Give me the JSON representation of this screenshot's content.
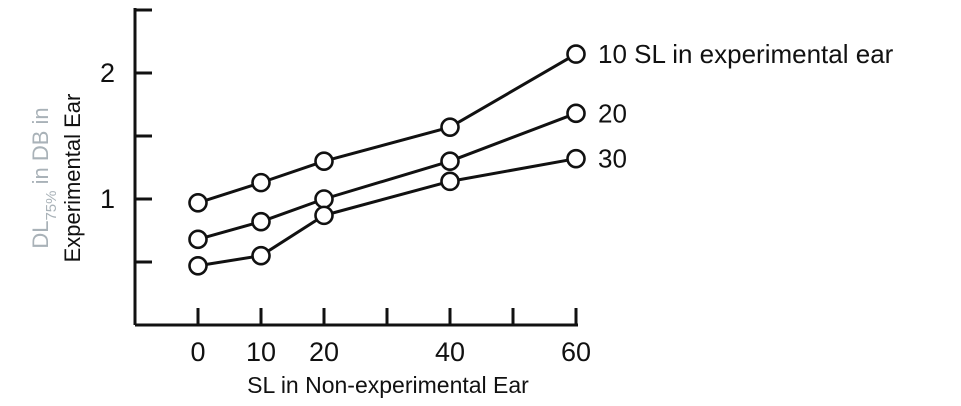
{
  "chart_data": {
    "type": "line",
    "x": [
      0,
      10,
      20,
      40,
      60
    ],
    "x_tick_labels": [
      "0",
      "10",
      "20",
      "40",
      "60"
    ],
    "y_tick_labels": [
      "1",
      "2"
    ],
    "y_ticks": [
      0.5,
      1,
      1.5,
      2,
      2.5
    ],
    "ylim": [
      0,
      2.5
    ],
    "xlabel": "SL in Non-experimental Ear",
    "ylabel": {
      "line1_main": "DL",
      "line1_sub": "75%",
      "line1_rest": " in DB in",
      "line2": "Experimental Ear"
    },
    "ylabel_colors": {
      "line1": "#a9b2b8",
      "line2": "#111111"
    },
    "grid": false,
    "legend": "direct labels at right end of each line",
    "series": [
      {
        "name": "10 SL in experimental ear",
        "values": [
          0.97,
          1.13,
          1.3,
          1.57,
          2.15
        ]
      },
      {
        "name": "20",
        "values": [
          0.68,
          0.82,
          1.0,
          1.3,
          1.68
        ]
      },
      {
        "name": "30",
        "values": [
          0.47,
          0.55,
          0.87,
          1.14,
          1.32
        ]
      }
    ]
  }
}
